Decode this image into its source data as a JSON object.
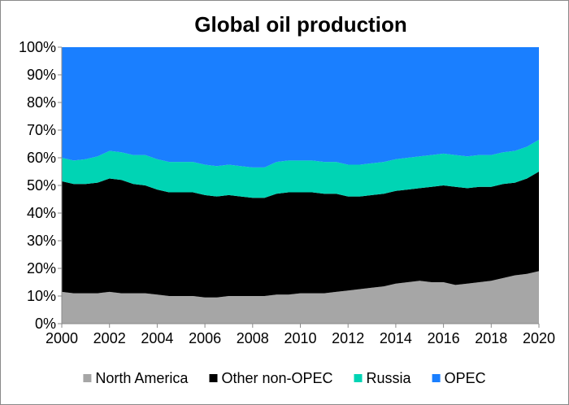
{
  "chart_data": {
    "type": "area",
    "stacked": true,
    "normalized_percent": true,
    "title": "Global oil production",
    "xlabel": "",
    "ylabel": "",
    "x": [
      2000,
      2000.5,
      2001,
      2001.5,
      2002,
      2002.5,
      2003,
      2003.5,
      2004,
      2004.5,
      2005,
      2005.5,
      2006,
      2006.5,
      2007,
      2007.5,
      2008,
      2008.5,
      2009,
      2009.5,
      2010,
      2010.5,
      2011,
      2011.5,
      2012,
      2012.5,
      2013,
      2013.5,
      2014,
      2014.5,
      2015,
      2015.5,
      2016,
      2016.5,
      2017,
      2017.5,
      2018,
      2018.5,
      2019,
      2019.5,
      2020
    ],
    "xlim": [
      2000,
      2020
    ],
    "x_ticks": [
      2000,
      2002,
      2004,
      2006,
      2008,
      2010,
      2012,
      2014,
      2016,
      2018,
      2020
    ],
    "ylim": [
      0,
      100
    ],
    "y_ticks": [
      0,
      10,
      20,
      30,
      40,
      50,
      60,
      70,
      80,
      90,
      100
    ],
    "y_tick_labels": [
      "0%",
      "10%",
      "20%",
      "30%",
      "40%",
      "50%",
      "60%",
      "70%",
      "80%",
      "90%",
      "100%"
    ],
    "grid": false,
    "legend_position": "bottom",
    "series": [
      {
        "name": "North America",
        "color": "#a6a6a6",
        "values": [
          11.5,
          11,
          11,
          11,
          11.5,
          11,
          11,
          11,
          10.5,
          10,
          10,
          10,
          9.5,
          9.5,
          10,
          10,
          10,
          10,
          10.5,
          10.5,
          11,
          11,
          11,
          11.5,
          12,
          12.5,
          13,
          13.5,
          14.5,
          15,
          15.5,
          15,
          15,
          14,
          14.5,
          15,
          15.5,
          16.5,
          17.5,
          18,
          19
        ]
      },
      {
        "name": "Other non-OPEC",
        "color": "#000000",
        "values": [
          40,
          39.5,
          39.5,
          40,
          41,
          41,
          39.5,
          39,
          38,
          37.5,
          37.5,
          37.5,
          37,
          36.5,
          36.5,
          36,
          35.5,
          35.5,
          36.5,
          37,
          36.5,
          36.5,
          36,
          35.5,
          34,
          33.5,
          33.5,
          33.5,
          33.5,
          33.5,
          33.5,
          34.5,
          35,
          35.5,
          34.5,
          34.5,
          34,
          34,
          33.5,
          34.5,
          36
        ]
      },
      {
        "name": "Russia",
        "color": "#00d4b4",
        "values": [
          8.5,
          8.5,
          9,
          9.5,
          10,
          10,
          10.5,
          11,
          11,
          11,
          11,
          11,
          11,
          11,
          11,
          11,
          11,
          11,
          11.5,
          11.5,
          11.5,
          11.5,
          11.5,
          11.5,
          11.5,
          11.5,
          11.5,
          11.5,
          11.5,
          11.5,
          11.5,
          11.5,
          11.5,
          11.5,
          11.5,
          11.5,
          11.5,
          11.5,
          11.5,
          11.5,
          11.5
        ]
      },
      {
        "name": "OPEC",
        "color": "#1a7fff",
        "values": [
          40,
          41,
          40.5,
          39.5,
          37.5,
          38,
          39,
          39,
          40.5,
          41.5,
          41.5,
          41.5,
          42.5,
          43,
          42.5,
          43,
          43.5,
          43.5,
          41.5,
          41,
          41,
          41,
          41.5,
          41.5,
          42.5,
          42.5,
          42,
          41.5,
          40.5,
          40,
          39.5,
          39,
          38.5,
          39,
          39.5,
          39,
          39,
          38,
          37.5,
          36,
          33.5
        ]
      }
    ]
  }
}
